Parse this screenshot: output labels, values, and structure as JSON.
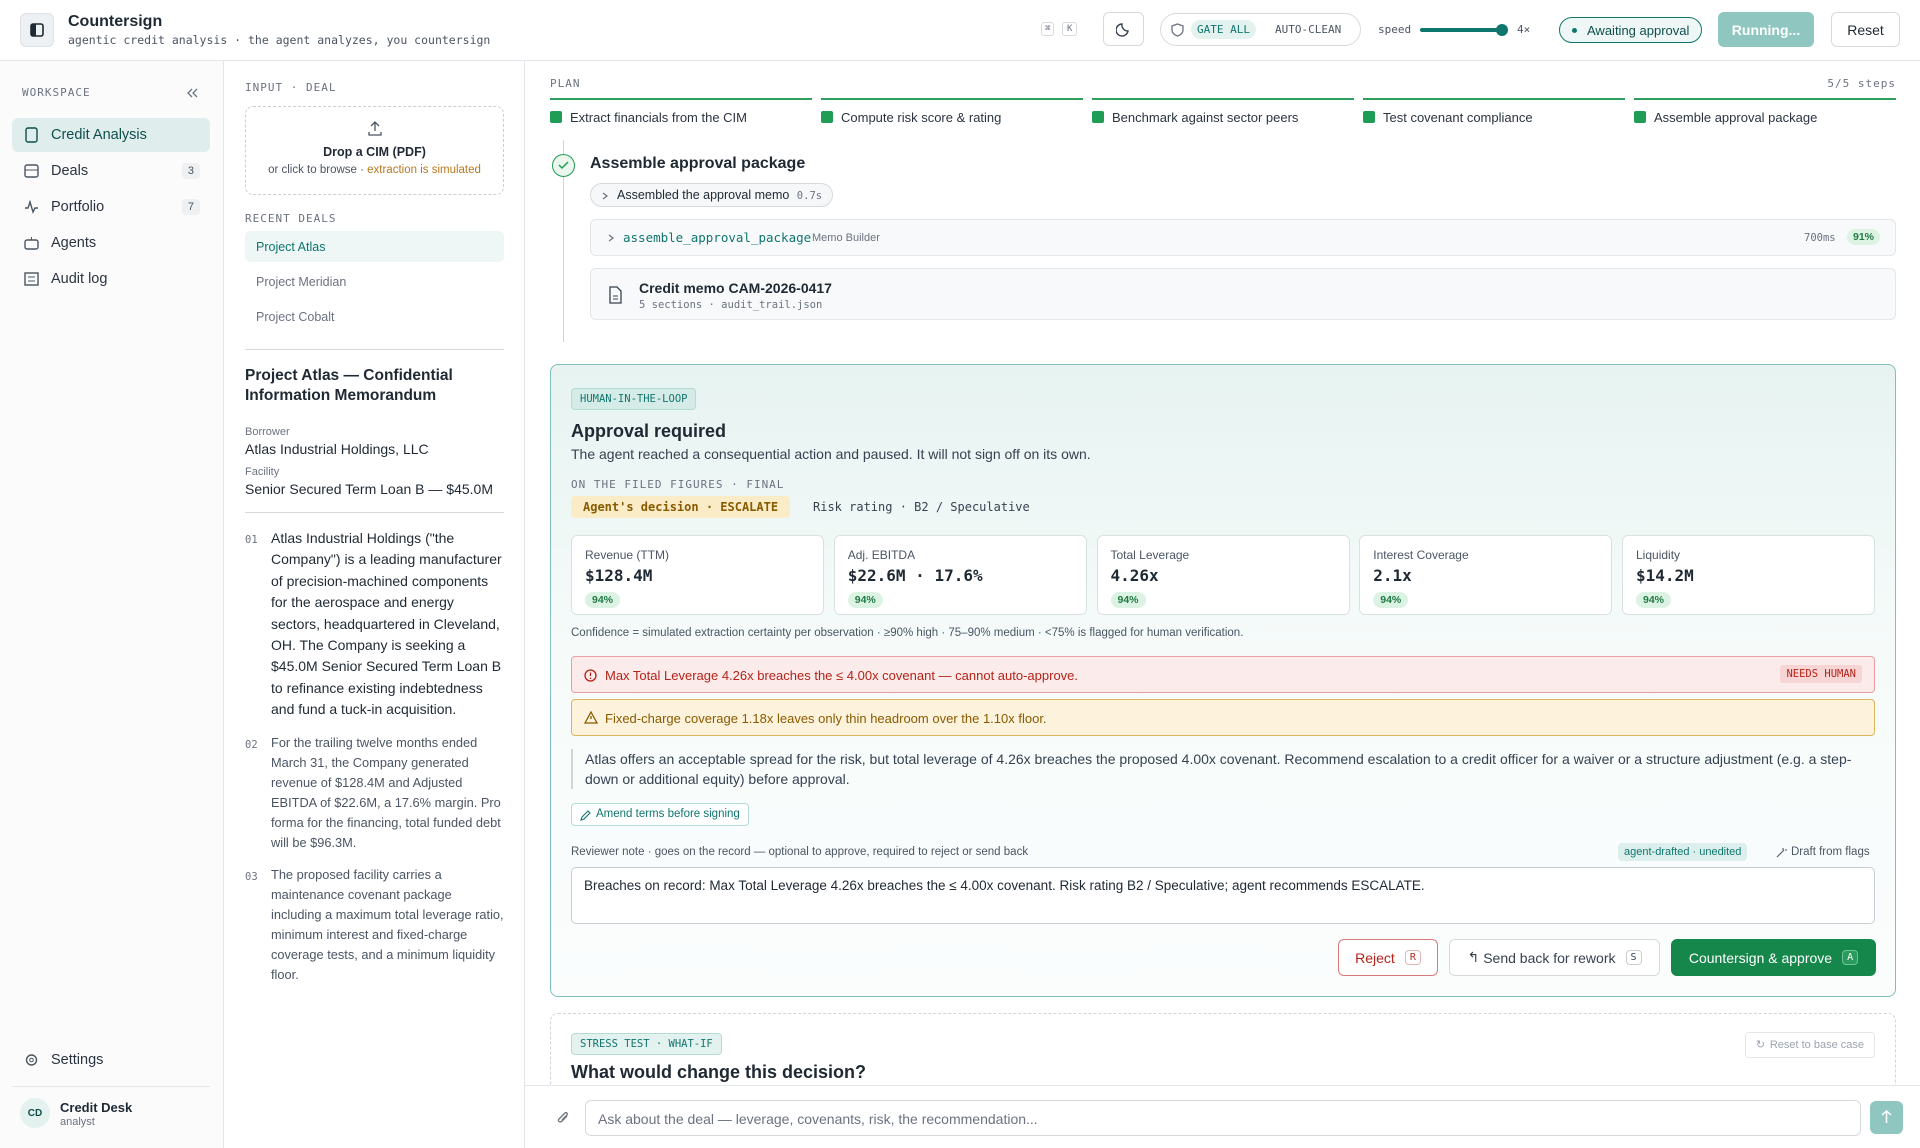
{
  "header": {
    "title": "Countersign",
    "subtitle": "agentic credit analysis · the agent analyzes, you countersign",
    "shortcut": [
      "⌘",
      "K"
    ],
    "gate": "GATE ALL",
    "autoclean": "AUTO-CLEAN",
    "speed_label": "speed",
    "speed_value": "4×",
    "status": "Awaiting approval",
    "running": "Running...",
    "reset": "Reset"
  },
  "sidebar": {
    "section": "WORKSPACE",
    "nav": [
      {
        "label": "Credit Analysis"
      },
      {
        "label": "Deals",
        "badge": "3"
      },
      {
        "label": "Portfolio",
        "badge": "7"
      },
      {
        "label": "Agents"
      },
      {
        "label": "Audit log"
      }
    ],
    "settings": "Settings",
    "user": {
      "initials": "CD",
      "name": "Credit Desk",
      "role": "analyst"
    }
  },
  "deal_panel": {
    "section": "INPUT · DEAL",
    "drop_title": "Drop a CIM (PDF)",
    "drop_hint": "or click to browse ·",
    "drop_note": "extraction is simulated",
    "recent_label": "RECENT DEALS",
    "recent": [
      "Project Atlas",
      "Project Meridian",
      "Project Cobalt"
    ],
    "doc_title": "Project Atlas — Confidential Information Memorandum",
    "fields": [
      {
        "label": "Borrower",
        "value": "Atlas Industrial Holdings, LLC"
      },
      {
        "label": "Facility",
        "value": "Senior Secured Term Loan B — $45.0M"
      }
    ],
    "paragraphs": [
      {
        "num": "01",
        "text": "Atlas Industrial Holdings (\"the Company\") is a leading manufacturer of precision-machined components for the aerospace and energy sectors, headquartered in Cleveland, OH. The Company is seeking a $45.0M Senior Secured Term Loan B to refinance existing indebtedness and fund a tuck-in acquisition."
      },
      {
        "num": "02",
        "text": "For the trailing twelve months ended March 31, the Company generated revenue of $128.4M and Adjusted EBITDA of $22.6M, a 17.6% margin. Pro forma for the financing, total funded debt will be $96.3M."
      },
      {
        "num": "03",
        "text": "The proposed facility carries a maintenance covenant package including a maximum total leverage ratio, minimum interest and fixed-charge coverage tests, and a minimum liquidity floor."
      }
    ]
  },
  "plan": {
    "label": "PLAN",
    "progress": "5/5 steps",
    "steps": [
      "Extract financials from the CIM",
      "Compute risk score & rating",
      "Benchmark against sector peers",
      "Test covenant compliance",
      "Assemble approval package"
    ]
  },
  "step": {
    "title": "Assemble approval package",
    "summary": "Assembled the approval memo",
    "summary_time": "0.7s",
    "tool": "assemble_approval_package",
    "tool_agent": "Memo Builder",
    "tool_time": "700ms",
    "tool_conf": "91%",
    "artifact_title": "Credit memo CAM-2026-0417",
    "artifact_meta": "5 sections · audit_trail.json"
  },
  "approval": {
    "tag": "HUMAN-IN-THE-LOOP",
    "title": "Approval required",
    "subtitle": "The agent reached a consequential action and paused. It will not sign off on its own.",
    "basis": "ON THE FILED FIGURES · FINAL",
    "decision": "Agent's decision · ESCALATE",
    "rating": "Risk rating · B2 / Speculative",
    "metrics": [
      {
        "label": "Revenue (TTM)",
        "value": "$128.4M",
        "conf": "94%"
      },
      {
        "label": "Adj. EBITDA",
        "value": "$22.6M · 17.6%",
        "conf": "94%"
      },
      {
        "label": "Total Leverage",
        "value": "4.26x",
        "conf": "94%"
      },
      {
        "label": "Interest Coverage",
        "value": "2.1x",
        "conf": "94%"
      },
      {
        "label": "Liquidity",
        "value": "$14.2M",
        "conf": "94%"
      }
    ],
    "confidence_note": "Confidence = simulated extraction certainty per observation · ≥90% high · 75–90% medium · <75% is flagged for human verification.",
    "alert_error": "Max Total Leverage 4.26x breaches the ≤ 4.00x covenant — cannot auto-approve.",
    "alert_badge": "NEEDS HUMAN",
    "alert_warning": "Fixed-charge coverage 1.18x leaves only thin headroom over the 1.10x floor.",
    "rationale": "Atlas offers an acceptable spread for the risk, but total leverage of 4.26x breaches the proposed 4.00x covenant. Recommend escalation to a credit officer for a waiver or a structure adjustment (e.g. a step-down or additional equity) before approval.",
    "amend": "Amend terms before signing",
    "note_label": "Reviewer note · goes on the record — optional to approve, required to reject or send back",
    "note_tag": "agent-drafted · unedited",
    "note_draft": "Draft from flags",
    "note_text": "Breaches on record: Max Total Leverage 4.26x breaches the ≤ 4.00x covenant. Risk rating B2 / Speculative; agent recommends ESCALATE.",
    "reject": "Reject",
    "reject_key": "R",
    "send_back": "Send back for rework",
    "send_back_key": "S",
    "approve": "Countersign & approve",
    "approve_key": "A"
  },
  "stress": {
    "tag": "STRESS TEST · WHAT-IF",
    "reset": "Reset to base case",
    "title": "What would change this decision?"
  },
  "composer": {
    "placeholder": "Ask about the deal — leverage, covenants, risk, the recommendation..."
  }
}
